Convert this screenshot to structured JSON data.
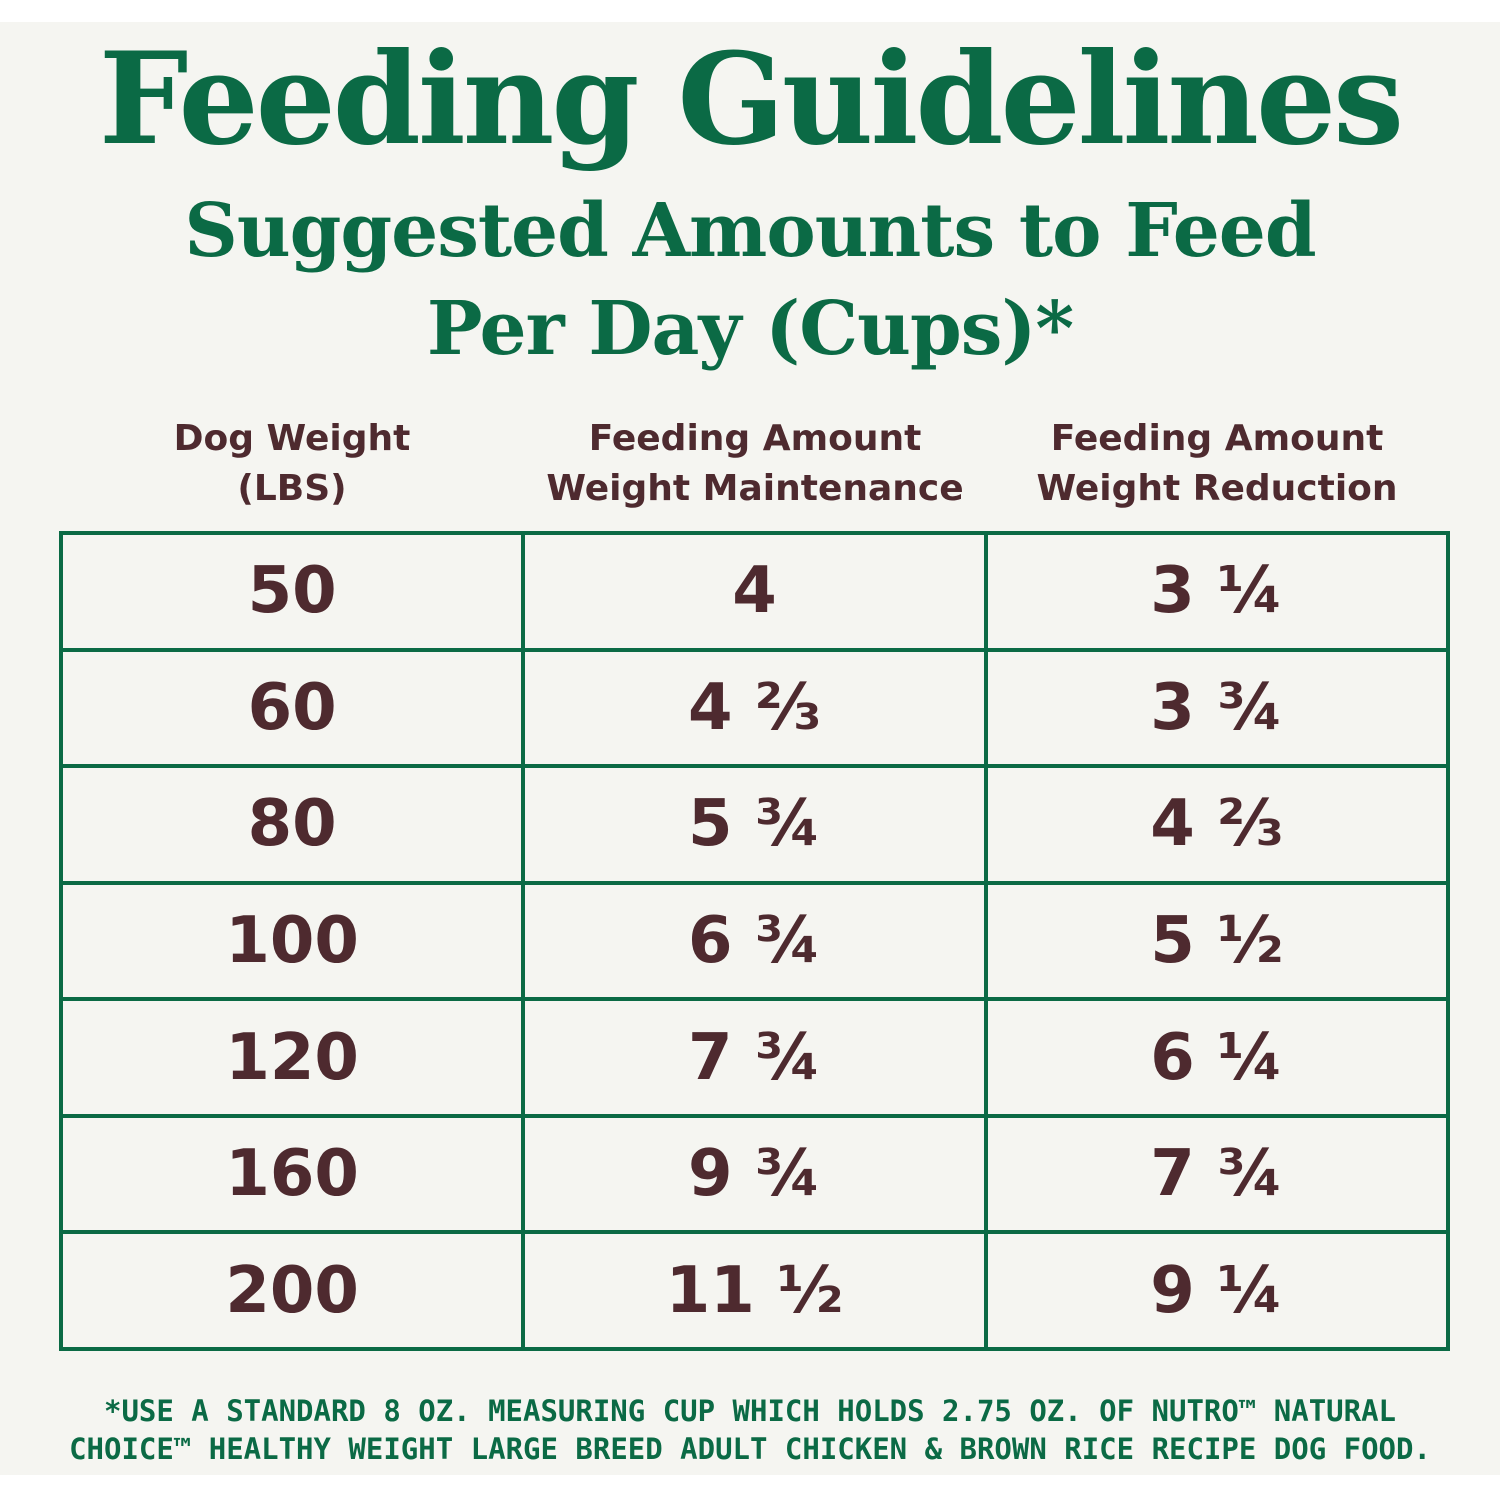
{
  "title": "Feeding Guidelines",
  "subtitle": {
    "line1": "Suggested Amounts to Feed",
    "line2": "Per Day (Cups)*"
  },
  "table": {
    "headers": [
      {
        "line1": "Dog Weight",
        "line2": "(LBS)"
      },
      {
        "line1": "Feeding Amount",
        "line2": "Weight Maintenance"
      },
      {
        "line1": "Feeding Amount",
        "line2": "Weight Reduction"
      }
    ],
    "rows": [
      [
        "50",
        "4",
        "3 ¼"
      ],
      [
        "60",
        "4 ⅔",
        "3 ¾"
      ],
      [
        "80",
        "5 ¾",
        "4 ⅔"
      ],
      [
        "100",
        "6 ¾",
        "5 ½"
      ],
      [
        "120",
        "7 ¾",
        "6 ¼"
      ],
      [
        "160",
        "9 ¾",
        "7 ¾"
      ],
      [
        "200",
        "11 ½",
        "9 ¼"
      ]
    ]
  },
  "footnote": {
    "line1": "*USE A STANDARD 8 OZ. MEASURING CUP WHICH HOLDS 2.75 OZ. OF NUTRO™ NATURAL",
    "line2": "CHOICE™ HEALTHY WEIGHT LARGE BREED ADULT CHICKEN & BROWN RICE RECIPE DOG FOOD."
  },
  "colors": {
    "green": "#0b6a45",
    "brown": "#4e2a2f",
    "background": "#f5f5f1"
  }
}
